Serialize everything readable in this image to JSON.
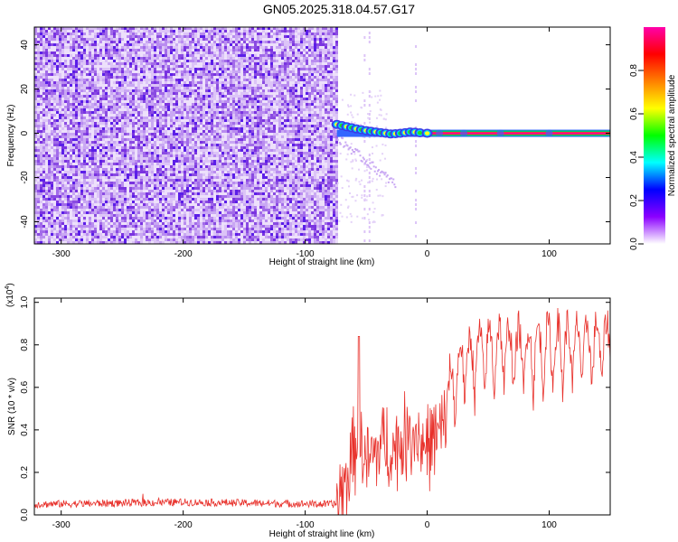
{
  "title": "GN05.2025.318.04.57.G17",
  "chart_data": [
    {
      "type": "heatmap",
      "panel": "spectrogram",
      "xlabel": "Height of straight line (km)",
      "ylabel": "Frequency (Hz)",
      "xlim": [
        -322,
        150
      ],
      "ylim": [
        -50,
        48
      ],
      "xticks": [
        -300,
        -200,
        -100,
        0,
        100
      ],
      "yticks": [
        -40,
        -20,
        0,
        20,
        40
      ],
      "noise_region_x": [
        -322,
        -74
      ],
      "signal": {
        "start_x": -74,
        "end_x": 150,
        "start_freq": 4,
        "steady_freq": 0,
        "sparse_noise_columns_x": [
          -52,
          -48,
          -10
        ],
        "trail_points": [
          {
            "x": -74,
            "y": 4
          },
          {
            "x": -70,
            "y": 3.5
          },
          {
            "x": -66,
            "y": 3
          },
          {
            "x": -62,
            "y": 2.5
          },
          {
            "x": -58,
            "y": 2
          },
          {
            "x": -54,
            "y": 1.6
          },
          {
            "x": -50,
            "y": 1.2
          },
          {
            "x": -46,
            "y": 0.9
          },
          {
            "x": -42,
            "y": 0.6
          },
          {
            "x": -38,
            "y": 0.3
          },
          {
            "x": -34,
            "y": 0
          },
          {
            "x": -30,
            "y": -0.3
          },
          {
            "x": -26,
            "y": -0.2
          },
          {
            "x": -22,
            "y": 0
          },
          {
            "x": -18,
            "y": 0.3
          },
          {
            "x": -14,
            "y": 0.6
          },
          {
            "x": -10,
            "y": 0.5
          },
          {
            "x": -6,
            "y": 0.2
          },
          {
            "x": 0,
            "y": 0
          }
        ]
      },
      "colorbar": {
        "label": "Normalized spectral amplitude",
        "range": [
          0,
          1
        ],
        "ticks": [
          0.0,
          0.2,
          0.4,
          0.6,
          0.8
        ],
        "tick_labels": [
          "0.0",
          "0.2",
          "0.4",
          "0.6",
          "0.8"
        ],
        "colors": [
          "#ffffff",
          "#8b00ff",
          "#0000ff",
          "#00ffff",
          "#00ff00",
          "#ffff00",
          "#ff8000",
          "#ff0000",
          "#ff00aa"
        ]
      }
    },
    {
      "type": "line",
      "panel": "snr",
      "xlabel": "Height of straight line (km)",
      "ylabel": "SNR (10 * v/v)",
      "multiplier_label": "(x10",
      "multiplier_exp": "4",
      "multiplier_close": ")",
      "xlim": [
        -322,
        150
      ],
      "ylim": [
        0,
        1.02
      ],
      "xticks": [
        -300,
        -200,
        -100,
        0,
        100
      ],
      "yticks": [
        0.0,
        0.2,
        0.4,
        0.6,
        0.8,
        1.0
      ],
      "series_color": "#e8302a",
      "x_start": -322,
      "x_end": 150,
      "x_step": 0.5,
      "profile": [
        {
          "x": -322,
          "mid": 0.05
        },
        {
          "x": -200,
          "mid": 0.06
        },
        {
          "x": -74,
          "mid": 0.05
        },
        {
          "x": -66,
          "mid": 0.16
        },
        {
          "x": -60,
          "mid": 0.3
        },
        {
          "x": -56,
          "mid": 0.38
        },
        {
          "x": -50,
          "mid": 0.22
        },
        {
          "x": -44,
          "mid": 0.28
        },
        {
          "x": -36,
          "mid": 0.34
        },
        {
          "x": -28,
          "mid": 0.3
        },
        {
          "x": -18,
          "mid": 0.36
        },
        {
          "x": -10,
          "mid": 0.4
        },
        {
          "x": -2,
          "mid": 0.32
        },
        {
          "x": 10,
          "mid": 0.38
        },
        {
          "x": 18,
          "mid": 0.48
        },
        {
          "x": 28,
          "mid": 0.62
        },
        {
          "x": 40,
          "mid": 0.66
        },
        {
          "x": 60,
          "mid": 0.7
        },
        {
          "x": 80,
          "mid": 0.68
        },
        {
          "x": 100,
          "mid": 0.7
        },
        {
          "x": 120,
          "mid": 0.7
        },
        {
          "x": 150,
          "mid": 0.72
        }
      ],
      "spike": {
        "x": -56,
        "y": 0.84
      }
    }
  ]
}
